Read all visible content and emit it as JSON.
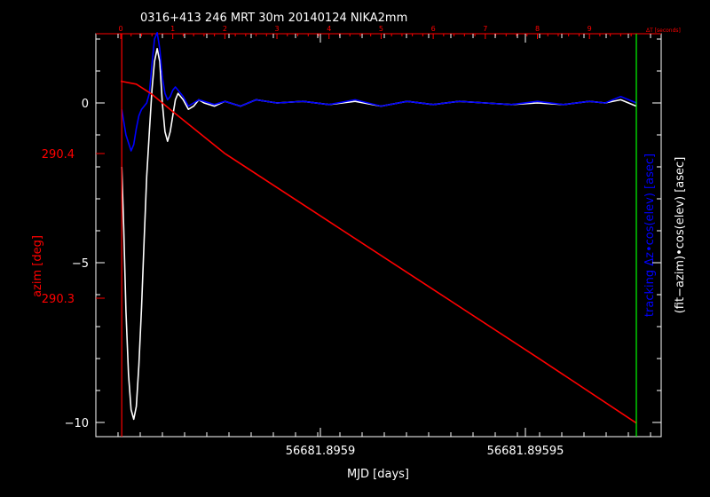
{
  "chart_data": {
    "type": "line",
    "title": "0316+413 246 MRT 30m  20140124 NIKA2mm",
    "xlabel": "MJD [days]",
    "x_ticks": [
      "56681.8959",
      "56681.89595"
    ],
    "top_axis": {
      "label": "ΔT [seconds]",
      "ticks": [
        "0",
        "1",
        "2",
        "3",
        "4",
        "5",
        "6",
        "7",
        "8",
        "9"
      ],
      "range": [
        0,
        10.3
      ]
    },
    "left_axis_white": {
      "ticks": [
        "0",
        "−5",
        "−10"
      ],
      "range": [
        -10.1,
        2.2
      ]
    },
    "left_axis_red": {
      "label": "azim [deg]",
      "ticks": [
        "290.4",
        "290.3"
      ],
      "range": [
        290.251,
        290.462
      ]
    },
    "right_labels": {
      "blue": "tracking Δz•cos(elev) [asec]",
      "white": "(fit−azim)•cos(elev) [asec]"
    },
    "series": [
      {
        "color": "#ffffff",
        "points": [
          [
            0.02,
            -2.0
          ],
          [
            0.06,
            -4.0
          ],
          [
            0.1,
            -6.5
          ],
          [
            0.15,
            -8.5
          ],
          [
            0.2,
            -9.6
          ],
          [
            0.25,
            -9.9
          ],
          [
            0.3,
            -9.5
          ],
          [
            0.35,
            -8.2
          ],
          [
            0.4,
            -6.4
          ],
          [
            0.45,
            -4.3
          ],
          [
            0.5,
            -2.3
          ],
          [
            0.55,
            -0.9
          ],
          [
            0.6,
            0.4
          ],
          [
            0.65,
            1.3
          ],
          [
            0.7,
            1.7
          ],
          [
            0.75,
            1.3
          ],
          [
            0.8,
            0.0
          ],
          [
            0.85,
            -0.9
          ],
          [
            0.9,
            -1.2
          ],
          [
            0.95,
            -0.9
          ],
          [
            1.0,
            -0.4
          ],
          [
            1.05,
            0.1
          ],
          [
            1.1,
            0.3
          ],
          [
            1.2,
            0.1
          ],
          [
            1.3,
            -0.2
          ],
          [
            1.4,
            -0.1
          ],
          [
            1.5,
            0.1
          ],
          [
            1.6,
            0.0
          ],
          [
            1.8,
            -0.1
          ],
          [
            2.0,
            0.05
          ],
          [
            2.3,
            -0.1
          ],
          [
            2.6,
            0.1
          ],
          [
            3.0,
            0.0
          ],
          [
            3.5,
            0.05
          ],
          [
            4.0,
            -0.05
          ],
          [
            4.5,
            0.05
          ],
          [
            5.0,
            -0.1
          ],
          [
            5.5,
            0.05
          ],
          [
            6.0,
            -0.05
          ],
          [
            6.5,
            0.05
          ],
          [
            7.0,
            0.0
          ],
          [
            7.5,
            -0.05
          ],
          [
            8.0,
            0.0
          ],
          [
            8.5,
            -0.05
          ],
          [
            9.0,
            0.05
          ],
          [
            9.3,
            0.0
          ],
          [
            9.6,
            0.1
          ],
          [
            9.9,
            -0.1
          ]
        ]
      },
      {
        "color": "#0000ff",
        "points": [
          [
            0.02,
            -0.2
          ],
          [
            0.1,
            -1.0
          ],
          [
            0.2,
            -1.5
          ],
          [
            0.25,
            -1.3
          ],
          [
            0.3,
            -0.8
          ],
          [
            0.35,
            -0.4
          ],
          [
            0.4,
            -0.2
          ],
          [
            0.5,
            0.0
          ],
          [
            0.55,
            0.3
          ],
          [
            0.6,
            1.2
          ],
          [
            0.65,
            2.0
          ],
          [
            0.7,
            2.2
          ],
          [
            0.75,
            1.7
          ],
          [
            0.8,
            0.8
          ],
          [
            0.85,
            0.3
          ],
          [
            0.9,
            0.1
          ],
          [
            0.95,
            0.2
          ],
          [
            1.0,
            0.4
          ],
          [
            1.05,
            0.5
          ],
          [
            1.1,
            0.4
          ],
          [
            1.2,
            0.2
          ],
          [
            1.3,
            -0.1
          ],
          [
            1.4,
            0.0
          ],
          [
            1.5,
            0.1
          ],
          [
            1.6,
            0.05
          ],
          [
            1.8,
            -0.05
          ],
          [
            2.0,
            0.05
          ],
          [
            2.3,
            -0.1
          ],
          [
            2.6,
            0.1
          ],
          [
            3.0,
            0.0
          ],
          [
            3.5,
            0.05
          ],
          [
            4.0,
            -0.05
          ],
          [
            4.5,
            0.1
          ],
          [
            5.0,
            -0.1
          ],
          [
            5.5,
            0.05
          ],
          [
            6.0,
            -0.05
          ],
          [
            6.5,
            0.05
          ],
          [
            7.0,
            0.0
          ],
          [
            7.5,
            -0.05
          ],
          [
            8.0,
            0.05
          ],
          [
            8.5,
            -0.05
          ],
          [
            9.0,
            0.05
          ],
          [
            9.3,
            0.0
          ],
          [
            9.6,
            0.2
          ],
          [
            9.9,
            0.0
          ]
        ]
      },
      {
        "color": "#ff0000",
        "axis": "azim",
        "points": [
          [
            0.0,
            290.45
          ],
          [
            0.3,
            290.448
          ],
          [
            0.6,
            290.441
          ],
          [
            1.0,
            290.429
          ],
          [
            2.0,
            290.4
          ],
          [
            4.0,
            290.353
          ],
          [
            6.0,
            290.306
          ],
          [
            8.0,
            290.259
          ],
          [
            9.9,
            290.2137
          ]
        ]
      }
    ],
    "markers": [
      {
        "color": "#ff0000",
        "t": 0.02
      },
      {
        "color": "#00ff00",
        "t": 9.9
      }
    ]
  }
}
